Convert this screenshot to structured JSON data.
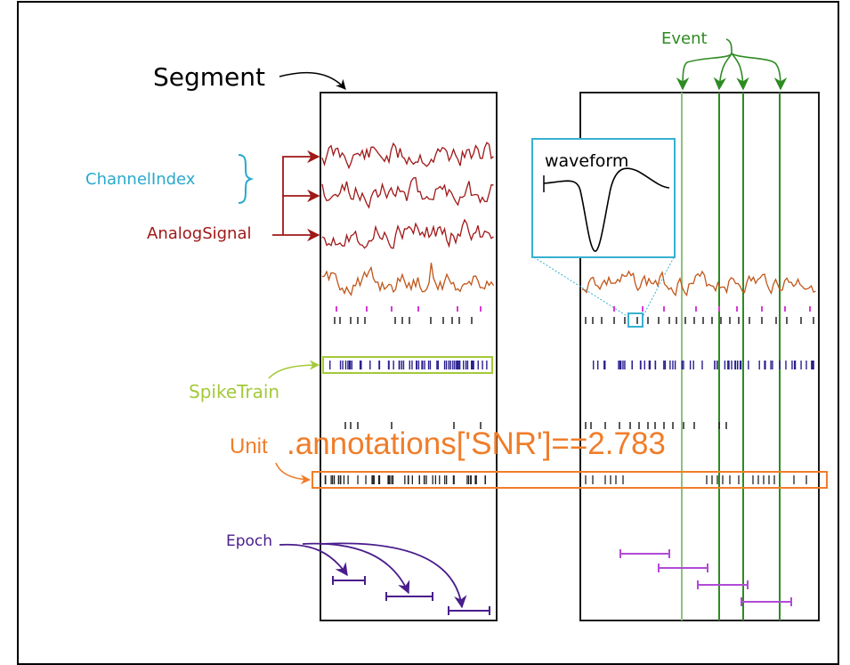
{
  "labels": {
    "segment": "Segment",
    "event": "Event",
    "channel_index": "ChannelIndex",
    "analog_signal": "AnalogSignal",
    "spike_train": "SpikeTrain",
    "unit": "Unit",
    "unit_annotation": ".annotations['SNR']==2.783",
    "epoch": "Epoch",
    "waveform": "waveform"
  },
  "colors": {
    "frame": "#000000",
    "segment_border": "#1a1a1a",
    "event": "#2e8b22",
    "event_light": "#8cc47a",
    "channel_index": "#29a9cc",
    "analog_signal": "#a01818",
    "lfp_signal": "#c0561a",
    "spike_train_label": "#a3c93a",
    "spike_train_ticks": "#2a1f8f",
    "unit": "#f07d2a",
    "epoch": "#4a1d8c",
    "epoch_bars_right": "#b14ad6",
    "magenta_ticks": "#d63ad6",
    "waveform_box": "#38b0d0"
  },
  "icons": {
    "curly_brace": "curly-brace-icon",
    "arrow": "arrow-icon"
  }
}
